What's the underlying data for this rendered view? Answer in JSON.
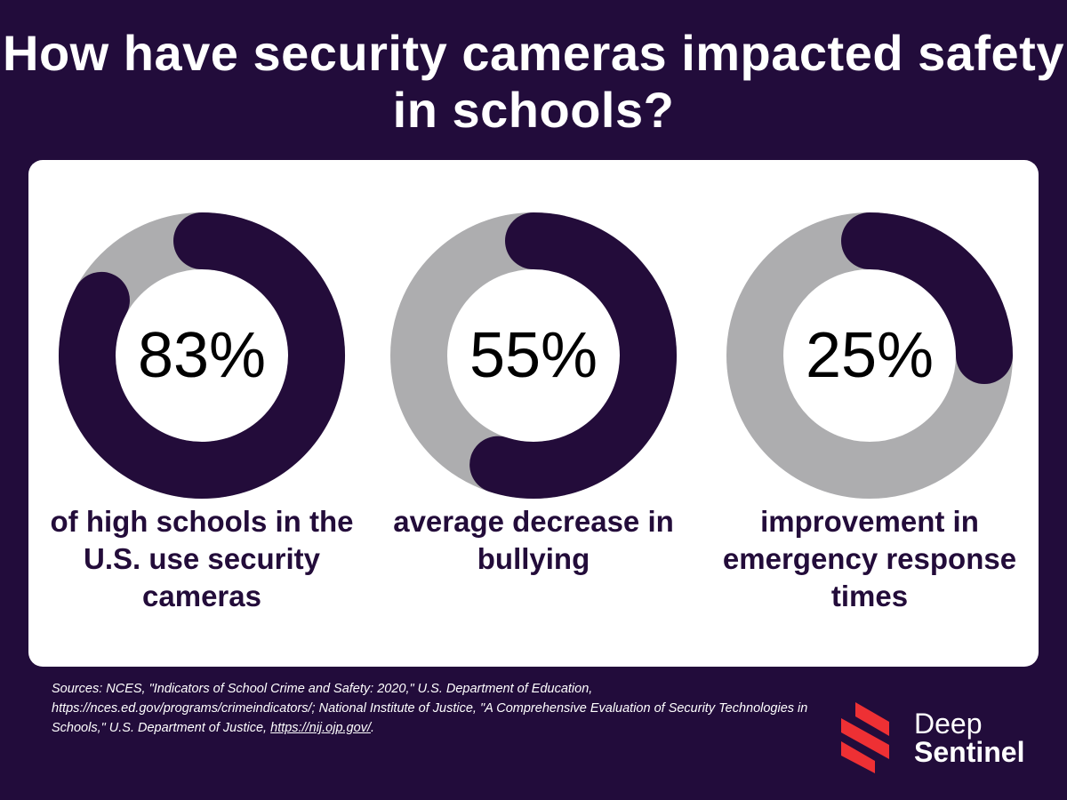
{
  "title": "How have security cameras impacted safety in schools?",
  "colors": {
    "background": "#220c3b",
    "filled": "#230c3a",
    "remaining": "#adadaf",
    "card": "#ffffff",
    "logo": "#ee3034"
  },
  "chart_data": [
    {
      "type": "pie",
      "variant": "donut",
      "values": [
        83,
        17
      ],
      "label": "83%",
      "caption": "of high schools in the U.S. use security cameras"
    },
    {
      "type": "pie",
      "variant": "donut",
      "values": [
        55,
        45
      ],
      "label": "55%",
      "caption": "average decrease in bullying"
    },
    {
      "type": "pie",
      "variant": "donut",
      "values": [
        25,
        75
      ],
      "label": "25%",
      "caption": "improvement in emergency response times"
    }
  ],
  "sources": {
    "text": "Sources: NCES, \"Indicators of School Crime and Safety: 2020,\" U.S. Department of Education, https://nces.ed.gov/programs/crimeindicators/;  National Institute of Justice, \"A Comprehensive Evaluation of Security Technologies in Schools,\" U.S. Department of Justice, ",
    "link": "https://nij.ojp.gov/",
    "end": "."
  },
  "brand": {
    "line1": "Deep",
    "line2": "Sentinel"
  }
}
